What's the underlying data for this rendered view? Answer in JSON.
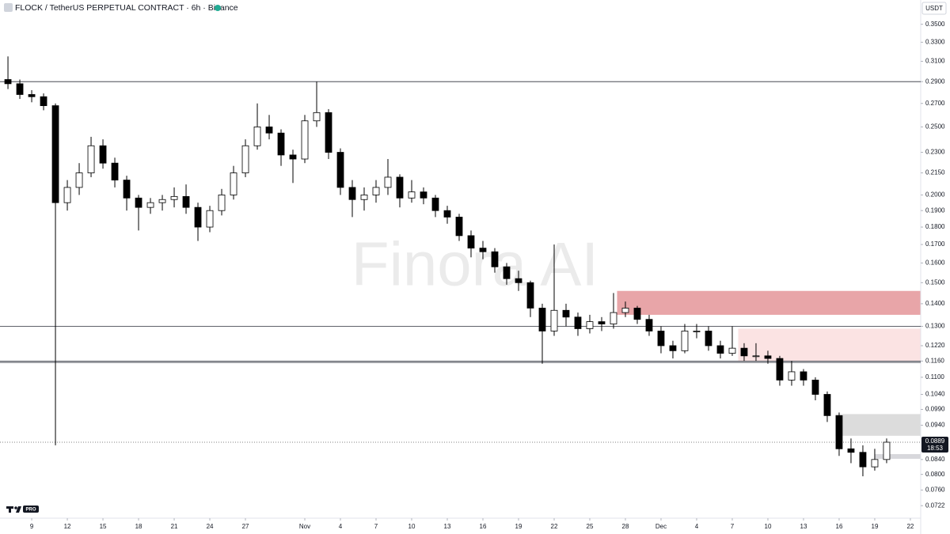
{
  "chart_data": {
    "type": "candlestick",
    "title": "FLOCK / TetherUS PERPETUAL CONTRACT · 6h · Binance",
    "currency": "USDT",
    "watermark": "Finora AI",
    "last_price": 0.0889,
    "countdown": "18:53",
    "up_color": "#ffffff",
    "down_color": "#000000",
    "log_scale": true,
    "xlim": [
      -2.67,
      74.87
    ],
    "ylim": [
      0.0693,
      0.379
    ],
    "yticks": [
      {
        "value": 0.35,
        "label": "0.3500"
      },
      {
        "value": 0.33,
        "label": "0.3300"
      },
      {
        "value": 0.31,
        "label": "0.3100"
      },
      {
        "value": 0.29,
        "label": "0.2900"
      },
      {
        "value": 0.27,
        "label": "0.2700"
      },
      {
        "value": 0.25,
        "label": "0.2500"
      },
      {
        "value": 0.23,
        "label": "0.2300"
      },
      {
        "value": 0.215,
        "label": "0.2150"
      },
      {
        "value": 0.2,
        "label": "0.2000"
      },
      {
        "value": 0.19,
        "label": "0.1900"
      },
      {
        "value": 0.18,
        "label": "0.1800"
      },
      {
        "value": 0.17,
        "label": "0.1700"
      },
      {
        "value": 0.16,
        "label": "0.1600"
      },
      {
        "value": 0.15,
        "label": "0.1500"
      },
      {
        "value": 0.14,
        "label": "0.1400"
      },
      {
        "value": 0.13,
        "label": "0.1300"
      },
      {
        "value": 0.122,
        "label": "0.1220"
      },
      {
        "value": 0.116,
        "label": "0.1160"
      },
      {
        "value": 0.11,
        "label": "0.1100"
      },
      {
        "value": 0.104,
        "label": "0.1040"
      },
      {
        "value": 0.099,
        "label": "0.0990"
      },
      {
        "value": 0.094,
        "label": "0.0940"
      },
      {
        "value": 0.084,
        "label": "0.0840"
      },
      {
        "value": 0.08,
        "label": "0.0800"
      },
      {
        "value": 0.076,
        "label": "0.0760"
      },
      {
        "value": 0.0722,
        "label": "0.0722"
      }
    ],
    "xticks": [
      {
        "value": 0,
        "label": "9"
      },
      {
        "value": 3,
        "label": "12"
      },
      {
        "value": 6,
        "label": "15"
      },
      {
        "value": 9,
        "label": "18"
      },
      {
        "value": 12,
        "label": "21"
      },
      {
        "value": 15,
        "label": "24"
      },
      {
        "value": 18,
        "label": "27"
      },
      {
        "value": 23,
        "label": "Nov"
      },
      {
        "value": 26,
        "label": "4"
      },
      {
        "value": 29,
        "label": "7"
      },
      {
        "value": 32,
        "label": "10"
      },
      {
        "value": 35,
        "label": "13"
      },
      {
        "value": 38,
        "label": "16"
      },
      {
        "value": 41,
        "label": "19"
      },
      {
        "value": 44,
        "label": "22"
      },
      {
        "value": 47,
        "label": "25"
      },
      {
        "value": 50,
        "label": "28"
      },
      {
        "value": 53,
        "label": "Dec"
      },
      {
        "value": 56,
        "label": "4"
      },
      {
        "value": 59,
        "label": "7"
      },
      {
        "value": 62,
        "label": "10"
      },
      {
        "value": 65,
        "label": "13"
      },
      {
        "value": 68,
        "label": "16"
      },
      {
        "value": 71,
        "label": "19"
      },
      {
        "value": 74,
        "label": "22"
      }
    ],
    "levels": [
      0.29,
      0.13,
      0.116,
      0.1155
    ],
    "zones": [
      {
        "start": 49.3,
        "low": 0.135,
        "high": 0.146,
        "color": "#e8a5a8"
      },
      {
        "start": 59.5,
        "low": 0.116,
        "high": 0.129,
        "color": "#fbe3e3"
      },
      {
        "start": 67.7,
        "low": 0.0908,
        "high": 0.0975,
        "color": "#dcdcdc"
      },
      {
        "start": 71,
        "low": 0.0842,
        "high": 0.0855,
        "color": "#d8d8dc"
      }
    ],
    "x": [
      -2,
      -1,
      0,
      1,
      2,
      3,
      4,
      5,
      6,
      7,
      8,
      9,
      10,
      11,
      12,
      13,
      14,
      15,
      16,
      17,
      18,
      19,
      20,
      21,
      22,
      23,
      24,
      25,
      26,
      27,
      28,
      29,
      30,
      31,
      32,
      33,
      34,
      35,
      36,
      37,
      38,
      39,
      40,
      41,
      42,
      43,
      44,
      45,
      46,
      47,
      48,
      49,
      50,
      51,
      52,
      53,
      54,
      55,
      56,
      57,
      58,
      59,
      60,
      61,
      62,
      63,
      64,
      65,
      66,
      67,
      68,
      69,
      70,
      71,
      72
    ],
    "open": [
      0.292,
      0.288,
      0.278,
      0.276,
      0.268,
      0.195,
      0.205,
      0.215,
      0.235,
      0.222,
      0.21,
      0.198,
      0.192,
      0.195,
      0.197,
      0.199,
      0.192,
      0.18,
      0.19,
      0.2,
      0.215,
      0.235,
      0.25,
      0.245,
      0.228,
      0.225,
      0.255,
      0.262,
      0.23,
      0.205,
      0.197,
      0.2,
      0.205,
      0.212,
      0.198,
      0.202,
      0.198,
      0.19,
      0.186,
      0.175,
      0.168,
      0.166,
      0.158,
      0.152,
      0.15,
      0.138,
      0.128,
      0.137,
      0.134,
      0.129,
      0.132,
      0.131,
      0.136,
      0.138,
      0.133,
      0.128,
      0.122,
      0.12,
      0.128,
      0.128,
      0.122,
      0.119,
      0.121,
      0.118,
      0.118,
      0.117,
      0.109,
      0.112,
      0.109,
      0.104,
      0.097,
      0.087,
      0.086,
      0.082,
      0.084
    ],
    "high": [
      0.315,
      0.292,
      0.282,
      0.279,
      0.27,
      0.21,
      0.222,
      0.242,
      0.24,
      0.226,
      0.213,
      0.2,
      0.198,
      0.2,
      0.205,
      0.207,
      0.195,
      0.193,
      0.204,
      0.22,
      0.24,
      0.27,
      0.26,
      0.248,
      0.232,
      0.26,
      0.29,
      0.265,
      0.233,
      0.21,
      0.205,
      0.21,
      0.225,
      0.214,
      0.21,
      0.205,
      0.2,
      0.193,
      0.188,
      0.178,
      0.172,
      0.168,
      0.16,
      0.156,
      0.151,
      0.14,
      0.17,
      0.14,
      0.136,
      0.135,
      0.134,
      0.145,
      0.141,
      0.139,
      0.135,
      0.13,
      0.124,
      0.131,
      0.131,
      0.13,
      0.124,
      0.13,
      0.123,
      0.123,
      0.12,
      0.118,
      0.116,
      0.113,
      0.11,
      0.105,
      0.098,
      0.09,
      0.088,
      0.087,
      0.09
    ],
    "low": [
      0.283,
      0.274,
      0.271,
      0.264,
      0.088,
      0.19,
      0.2,
      0.212,
      0.218,
      0.205,
      0.19,
      0.178,
      0.188,
      0.19,
      0.192,
      0.188,
      0.172,
      0.177,
      0.187,
      0.197,
      0.212,
      0.232,
      0.24,
      0.22,
      0.208,
      0.222,
      0.25,
      0.225,
      0.2,
      0.186,
      0.19,
      0.195,
      0.2,
      0.192,
      0.195,
      0.194,
      0.186,
      0.182,
      0.172,
      0.163,
      0.162,
      0.155,
      0.149,
      0.146,
      0.134,
      0.115,
      0.126,
      0.13,
      0.126,
      0.127,
      0.128,
      0.129,
      0.134,
      0.131,
      0.126,
      0.119,
      0.117,
      0.119,
      0.125,
      0.12,
      0.117,
      0.118,
      0.116,
      0.116,
      0.115,
      0.107,
      0.107,
      0.107,
      0.102,
      0.095,
      0.085,
      0.083,
      0.0795,
      0.081,
      0.083
    ],
    "close": [
      0.288,
      0.278,
      0.276,
      0.268,
      0.195,
      0.205,
      0.215,
      0.235,
      0.222,
      0.21,
      0.198,
      0.192,
      0.195,
      0.197,
      0.199,
      0.192,
      0.18,
      0.19,
      0.2,
      0.215,
      0.235,
      0.25,
      0.245,
      0.228,
      0.225,
      0.255,
      0.262,
      0.23,
      0.205,
      0.197,
      0.2,
      0.205,
      0.212,
      0.198,
      0.202,
      0.198,
      0.19,
      0.186,
      0.175,
      0.168,
      0.166,
      0.158,
      0.152,
      0.15,
      0.138,
      0.128,
      0.137,
      0.134,
      0.129,
      0.132,
      0.131,
      0.136,
      0.138,
      0.133,
      0.128,
      0.122,
      0.12,
      0.128,
      0.128,
      0.122,
      0.119,
      0.121,
      0.118,
      0.118,
      0.117,
      0.109,
      0.112,
      0.109,
      0.104,
      0.097,
      0.087,
      0.086,
      0.082,
      0.084,
      0.0889
    ]
  }
}
